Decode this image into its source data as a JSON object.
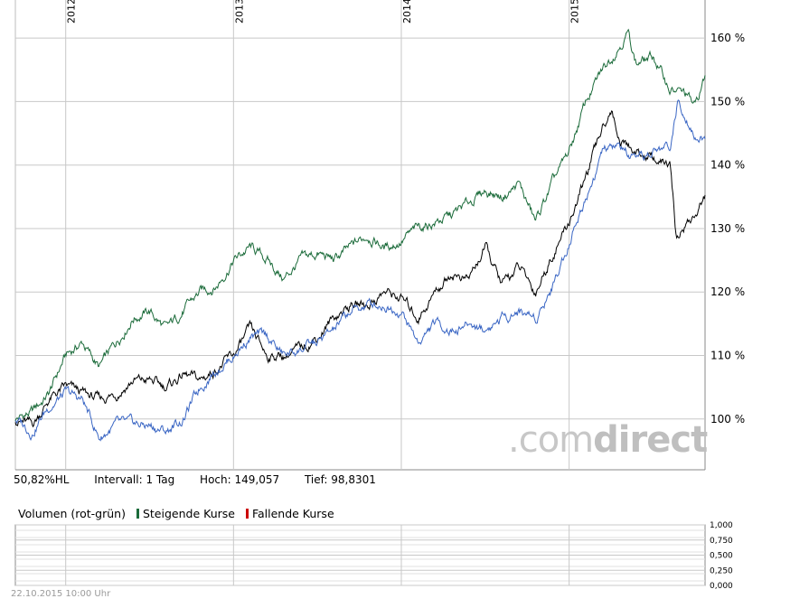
{
  "chart_data": [
    {
      "type": "line",
      "x_labels": [
        "2012",
        "2013",
        "2014",
        "2015"
      ],
      "y_ticks": [
        "100 %",
        "110 %",
        "120 %",
        "130 %",
        "140 %",
        "150 %",
        "160 %"
      ],
      "ylim": [
        92,
        166
      ],
      "xlim": [
        2011.7,
        2015.81
      ],
      "grid": true,
      "series": [
        {
          "color": "#1b6b3a",
          "x": [
            2011.7,
            2011.8,
            2011.9,
            2012.0,
            2012.1,
            2012.2,
            2012.3,
            2012.4,
            2012.5,
            2012.6,
            2012.7,
            2012.8,
            2012.9,
            2013.0,
            2013.1,
            2013.2,
            2013.3,
            2013.4,
            2013.5,
            2013.6,
            2013.7,
            2013.8,
            2013.9,
            2014.0,
            2014.1,
            2014.2,
            2014.3,
            2014.4,
            2014.5,
            2014.6,
            2014.7,
            2014.8,
            2014.9,
            2015.0,
            2015.1,
            2015.2,
            2015.3,
            2015.35,
            2015.4,
            2015.5,
            2015.6,
            2015.7,
            2015.75,
            2015.81
          ],
          "values": [
            100,
            101,
            104,
            110,
            112,
            108,
            112,
            116,
            117,
            114,
            117,
            120,
            121,
            125,
            127,
            125,
            122,
            125,
            126,
            125,
            127,
            129,
            127,
            128,
            130,
            131,
            132,
            134,
            136,
            135,
            137,
            131,
            137,
            142,
            150,
            155,
            159,
            161,
            156,
            157,
            152,
            151,
            149,
            154
          ]
        },
        {
          "color": "#000000",
          "x": [
            2011.7,
            2011.8,
            2011.9,
            2012.0,
            2012.1,
            2012.2,
            2012.3,
            2012.4,
            2012.5,
            2012.6,
            2012.7,
            2012.8,
            2012.9,
            2013.0,
            2013.1,
            2013.2,
            2013.3,
            2013.4,
            2013.5,
            2013.6,
            2013.7,
            2013.8,
            2013.9,
            2014.0,
            2014.1,
            2014.2,
            2014.3,
            2014.4,
            2014.5,
            2014.6,
            2014.7,
            2014.8,
            2014.9,
            2015.0,
            2015.1,
            2015.2,
            2015.25,
            2015.3,
            2015.4,
            2015.5,
            2015.6,
            2015.64,
            2015.7,
            2015.75,
            2015.81
          ],
          "values": [
            100,
            99,
            103,
            105,
            104,
            103,
            104,
            106,
            106,
            105,
            107,
            106,
            108,
            110,
            114,
            110,
            110,
            111,
            113,
            116,
            118,
            118,
            120,
            119,
            116,
            120,
            123,
            122,
            127,
            121,
            124,
            120,
            126,
            131,
            138,
            146,
            149,
            144,
            142,
            141,
            140,
            128,
            131,
            132,
            135
          ]
        },
        {
          "color": "#3a66c4",
          "x": [
            2011.7,
            2011.8,
            2011.9,
            2012.0,
            2012.1,
            2012.2,
            2012.3,
            2012.4,
            2012.5,
            2012.6,
            2012.7,
            2012.8,
            2012.9,
            2013.0,
            2013.1,
            2013.2,
            2013.3,
            2013.4,
            2013.5,
            2013.6,
            2013.7,
            2013.8,
            2013.9,
            2014.0,
            2014.1,
            2014.2,
            2014.3,
            2014.4,
            2014.5,
            2014.6,
            2014.7,
            2014.8,
            2014.9,
            2015.0,
            2015.1,
            2015.2,
            2015.3,
            2015.4,
            2015.5,
            2015.6,
            2015.65,
            2015.7,
            2015.75,
            2015.81
          ],
          "values": [
            100,
            98,
            102,
            104,
            103,
            97,
            99,
            99,
            99,
            98,
            100,
            105,
            108,
            110,
            113,
            113,
            110,
            111,
            112,
            114,
            117,
            118,
            118,
            117,
            112,
            115,
            114,
            115,
            114,
            116,
            117,
            116,
            121,
            128,
            135,
            142,
            143,
            140,
            142,
            143,
            150,
            148,
            145,
            144
          ]
        }
      ],
      "watermark": ".comdirect"
    },
    {
      "type": "bar",
      "title": "Volumen (rot-grün)",
      "legend": [
        "Steigende Kurse",
        "Fallende Kurse"
      ],
      "legend_colors": [
        "#1b6b3a",
        "#cc0000"
      ],
      "y_ticks": [
        "0,000",
        "0,250",
        "0,500",
        "0,750",
        "1,000"
      ],
      "ylim": [
        0,
        1
      ],
      "values": []
    }
  ],
  "info": {
    "performance": "50,82%HL",
    "interval": "Intervall: 1 Tag",
    "high": "Hoch:  149,057",
    "low": "Tief: 98,8301"
  },
  "volume": {
    "title": "Volumen (rot-grün)",
    "rising": "Steigende Kurse",
    "falling": "Fallende Kurse"
  },
  "timestamp": "22.10.2015 10:00 Uhr",
  "watermark": {
    "prefix": ".com",
    "suffix": "direct"
  }
}
